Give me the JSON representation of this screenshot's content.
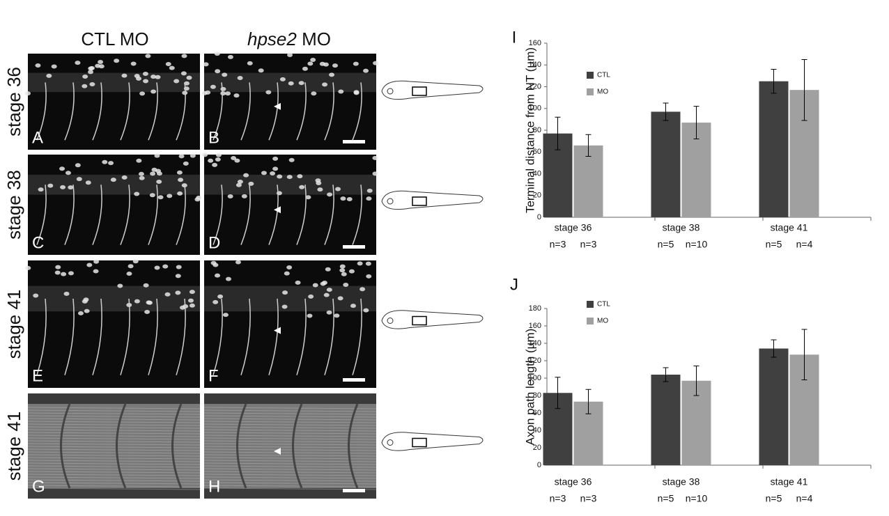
{
  "figure": {
    "col_headers": [
      "CTL MO",
      {
        "gene": "hpse2",
        "suffix": "MO"
      }
    ],
    "row_labels": [
      "stage 36",
      "stage 38",
      "stage 41",
      "stage 41"
    ],
    "panel_letters": [
      "A",
      "B",
      "C",
      "D",
      "E",
      "F",
      "G",
      "H"
    ]
  },
  "chart_data": [
    {
      "type": "bar",
      "panel": "I",
      "ylabel": "Terminal distance from NT (µm)",
      "categories": [
        "stage 36",
        "stage 38",
        "stage 41"
      ],
      "n_labels": [
        [
          "n=3",
          "n=3"
        ],
        [
          "n=5",
          "n=10"
        ],
        [
          "n=5",
          "n=4"
        ]
      ],
      "series": [
        {
          "name": "CTL",
          "color": "#404040",
          "values": [
            77,
            97,
            125
          ],
          "errors": [
            15,
            8,
            11
          ]
        },
        {
          "name": "MO",
          "color": "#a0a0a0",
          "values": [
            66,
            87,
            117
          ],
          "errors": [
            10,
            15,
            28
          ]
        }
      ],
      "ylim": [
        0,
        160
      ],
      "yticks": [
        0,
        20,
        40,
        60,
        80,
        100,
        120,
        140,
        160
      ]
    },
    {
      "type": "bar",
      "panel": "J",
      "ylabel": "Axon path length (µm)",
      "categories": [
        "stage 36",
        "stage 38",
        "stage 41"
      ],
      "n_labels": [
        [
          "n=3",
          "n=3"
        ],
        [
          "n=5",
          "n=10"
        ],
        [
          "n=5",
          "n=4"
        ]
      ],
      "series": [
        {
          "name": "CTL",
          "color": "#404040",
          "values": [
            83,
            104,
            134
          ],
          "errors": [
            18,
            8,
            10
          ]
        },
        {
          "name": "MO",
          "color": "#a0a0a0",
          "values": [
            73,
            97,
            127
          ],
          "errors": [
            14,
            17,
            29
          ]
        }
      ],
      "ylim": [
        0,
        180
      ],
      "yticks": [
        0,
        20,
        40,
        60,
        80,
        100,
        120,
        140,
        160,
        180
      ]
    }
  ]
}
